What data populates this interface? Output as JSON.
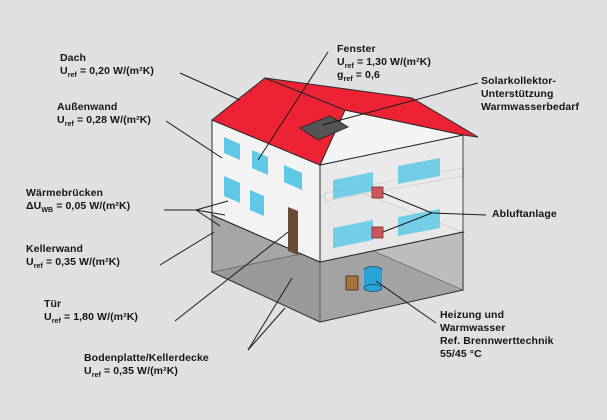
{
  "labels": {
    "dach": {
      "title": "Dach",
      "u_prefix": "U",
      "u_sub": "ref",
      "u_value": " = 0,20 W/(m²K)"
    },
    "aussenwand": {
      "title": "Außenwand",
      "u_prefix": "U",
      "u_sub": "ref",
      "u_value": " = 0,28 W/(m²K)"
    },
    "waermebruecken": {
      "title": "Wärmebrücken",
      "u_prefix": "ΔU",
      "u_sub": "WB",
      "u_value": " = 0,05 W/(m²K)"
    },
    "kellerwand": {
      "title": "Kellerwand",
      "u_prefix": "U",
      "u_sub": "ref",
      "u_value": " = 0,35 W/(m²K)"
    },
    "tuer": {
      "title": "Tür",
      "u_prefix": "U",
      "u_sub": "ref",
      "u_value": " = 1,80 W/(m²K)"
    },
    "bodenplatte": {
      "title": "Bodenplatte/Kellerdecke",
      "u_prefix": "U",
      "u_sub": "ref",
      "u_value": " = 0,35 W/(m²K)"
    },
    "fenster": {
      "title": "Fenster",
      "u_prefix": "U",
      "u_sub": "ref",
      "u_value": " = 1,30 W/(m²K)",
      "g_prefix": "g",
      "g_sub": "ref",
      "g_value": " = 0,6"
    },
    "solar": {
      "line1": "Solarkollektor-",
      "line2": "Unterstützung",
      "line3": "Warmwasserbedarf"
    },
    "abluft": {
      "title": "Abluftanlage"
    },
    "heizung": {
      "line1": "Heizung und",
      "line2": "Warmwasser",
      "line3": "Ref. Brennwerttechnik",
      "line4": "55/45 °C"
    }
  },
  "colors": {
    "background": "#dfe0e1",
    "wall": "#f1f1f1",
    "roof": "#ee2235",
    "window": "#5fc8e6",
    "basement": "#a0a0a0",
    "floor": "#cfcfcf",
    "door": "#6a4a33",
    "fan": "#c9575c",
    "tank": "#2aa3d6",
    "boiler": "#a9723f",
    "solar_panel": "#555555"
  }
}
